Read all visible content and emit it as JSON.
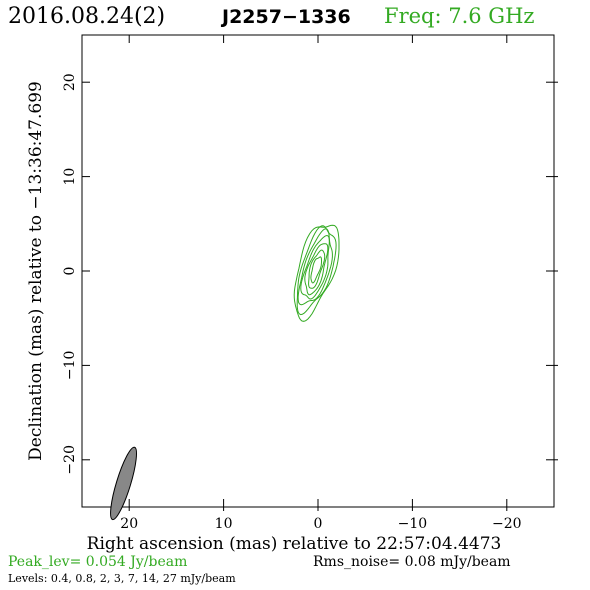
{
  "header": {
    "date": "2016.08.24(2)",
    "source": "J2257−1336",
    "freq": "Freq: 7.6 GHz"
  },
  "chart_data": {
    "type": "contour",
    "xlabel": "Right ascension (mas) relative to 22:57:04.4473",
    "ylabel": "Declination (mas) relative to −13:36:47.699",
    "xlim": [
      25,
      -25
    ],
    "ylim": [
      -25,
      25
    ],
    "x_ticks": [
      20,
      10,
      0,
      -10,
      -20
    ],
    "y_ticks": [
      20,
      10,
      0,
      -10,
      -20
    ],
    "x_tick_labels": [
      "20",
      "10",
      "0",
      "−10",
      "−20"
    ],
    "y_tick_labels": [
      "20",
      "10",
      "0",
      "−10",
      "−20"
    ],
    "contour_color": "#33aa22",
    "contour_center": [
      0.2,
      0.2
    ],
    "contour_pa_deg": 17,
    "contour_major_mas": [
      5.2,
      4.6,
      4.0,
      3.4,
      2.8,
      2.1,
      1.4
    ],
    "contour_minor_mas": [
      1.9,
      1.6,
      1.35,
      1.1,
      0.85,
      0.6,
      0.4
    ],
    "beam": {
      "center": [
        20.6,
        -22.5
      ],
      "major_mas": 4.0,
      "minor_mas": 0.75,
      "pa_deg": 17,
      "fill": "#888888"
    },
    "peak_lev": "Peak_lev=  0.054 Jy/beam",
    "rms_noise": "Rms_noise= 0.08 mJy/beam",
    "levels": "Levels: 0.4, 0.8,   2,   3,   7,  14,  27 mJy/beam"
  }
}
